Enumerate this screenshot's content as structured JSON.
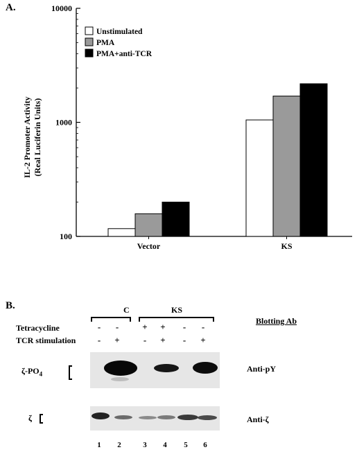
{
  "panel_a_label": "A.",
  "panel_b_label": "B.",
  "chart_data": {
    "type": "bar",
    "yscale": "log",
    "ylim": [
      100,
      10000
    ],
    "yticks": [
      100,
      1000,
      10000
    ],
    "ytick_labels": [
      "100",
      "1000",
      "10000"
    ],
    "ylabel": [
      "IL-2 Promoter Activity",
      "(Real Luciferin Units)"
    ],
    "categories": [
      "Vector",
      "KS"
    ],
    "legend_position": "top-left",
    "series": [
      {
        "name": "Unstimulated",
        "color": "#ffffff",
        "values": [
          117,
          1050
        ]
      },
      {
        "name": "PMA",
        "color": "#9a9a9a",
        "values": [
          158,
          1700
        ]
      },
      {
        "name": "PMA+anti-TCR",
        "color": "#000000",
        "values": [
          200,
          2180
        ]
      }
    ]
  },
  "blot": {
    "group_c": "C",
    "group_ks": "KS",
    "blotting_ab": "Blotting Ab",
    "row_labels": [
      "Tetracycline",
      "TCR stimulation"
    ],
    "tetracycline": [
      "-",
      "-",
      "+",
      "+",
      "-",
      "-"
    ],
    "tcr_stimulation": [
      "-",
      "+",
      "-",
      "+",
      "-",
      "+"
    ],
    "top_band_label": "ζ-PO",
    "top_band_subscript": "4",
    "bottom_band_label": "ζ",
    "top_antibody": "Anti-pY",
    "bottom_antibody": "Anti-ζ",
    "lanes": [
      "1",
      "2",
      "3",
      "4",
      "5",
      "6"
    ]
  }
}
